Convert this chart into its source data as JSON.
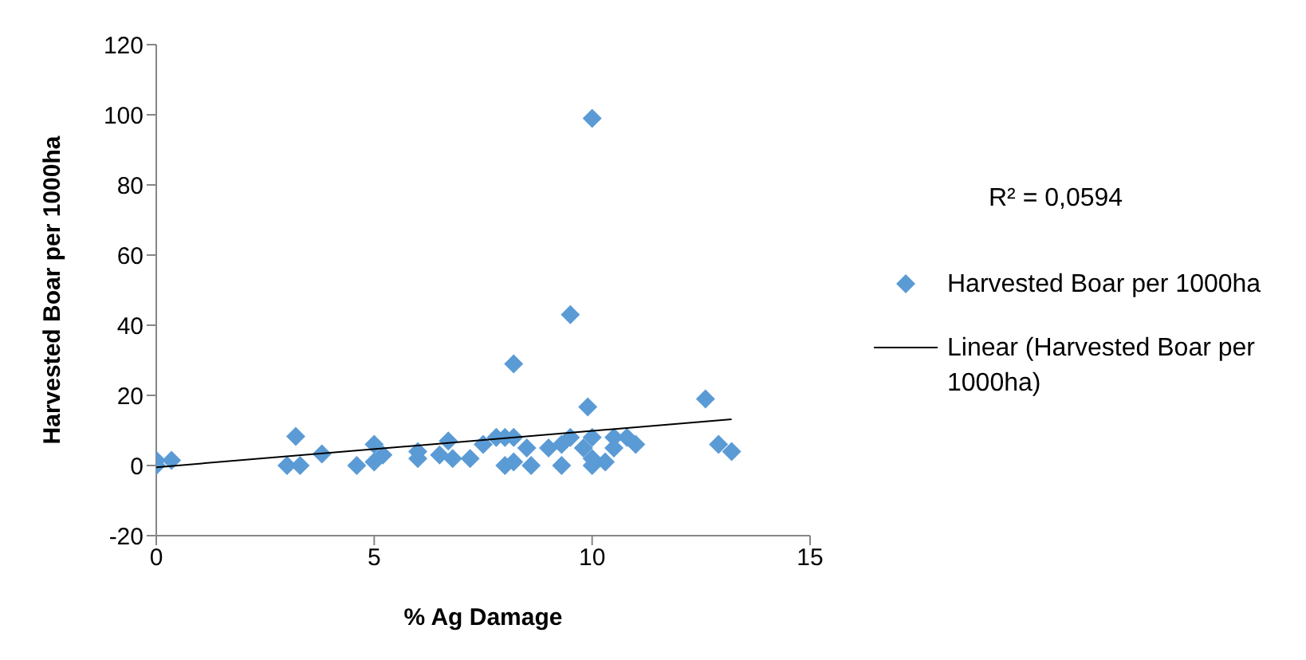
{
  "chart_data": {
    "type": "scatter",
    "xlabel": "% Ag Damage",
    "ylabel": "Harvested Boar per 1000ha",
    "xlim": [
      0,
      15
    ],
    "xticks": [
      0,
      5,
      10,
      15
    ],
    "ylim": [
      -20,
      120
    ],
    "yticks": [
      -20,
      0,
      20,
      40,
      60,
      80,
      100,
      120
    ],
    "legend": "right",
    "annotations": [
      "R² = 0,0594"
    ],
    "series": [
      {
        "name": "Harvested Boar per 1000ha",
        "color": "#5b9bd5",
        "marker": "diamond",
        "x": [
          0,
          0,
          0.35,
          3.0,
          3.3,
          3.2,
          3.8,
          4.6,
          5.0,
          5.0,
          5.2,
          6.0,
          6.0,
          6.5,
          6.7,
          6.8,
          7.2,
          7.5,
          7.8,
          8.0,
          8.2,
          8.0,
          8.2,
          8.2,
          8.5,
          8.6,
          9.0,
          9.3,
          9.3,
          9.5,
          9.5,
          9.8,
          10.0,
          9.9,
          10.0,
          10.0,
          10.0,
          10.3,
          10.5,
          10.5,
          10.8,
          11.0,
          12.6,
          12.9,
          13.2
        ],
        "values": [
          1.5,
          0,
          1.5,
          0,
          0,
          8.3,
          3.3,
          0,
          1,
          6,
          3,
          2,
          4,
          3,
          7,
          2,
          2,
          6,
          8,
          8,
          8,
          0,
          1,
          29,
          5,
          0,
          5,
          6,
          0,
          43,
          8,
          5,
          99,
          16.7,
          8,
          2,
          0,
          1,
          8,
          5,
          8,
          6,
          19,
          6,
          4
        ]
      },
      {
        "name": "Linear (Harvested Boar per 1000ha)",
        "type": "line",
        "color": "#000000",
        "marker": "none",
        "x": [
          0,
          13.2
        ],
        "values": [
          -0.5,
          13.2
        ]
      }
    ]
  }
}
